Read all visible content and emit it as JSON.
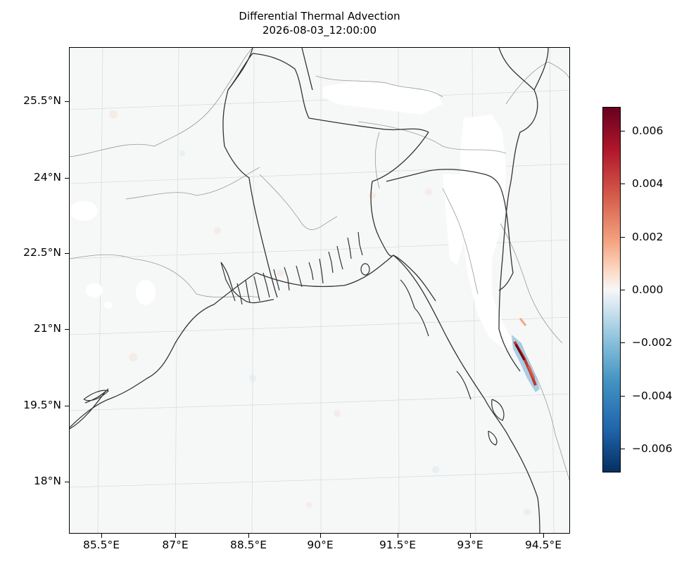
{
  "title": "Differential Thermal Advection",
  "subtitle": "2026-08-03_12:00:00",
  "map": {
    "region": "Bay of Bengal / Bangladesh",
    "lon_range": [
      84.9,
      95.0
    ],
    "lat_range": [
      16.9,
      26.6
    ],
    "lon_ticks": [
      "85.5°E",
      "87°E",
      "88.5°E",
      "90°E",
      "91.5°E",
      "93°E",
      "94.5°E"
    ],
    "lat_ticks": [
      "25.5°N",
      "24°N",
      "22.5°N",
      "21°N",
      "19.5°N",
      "18°N"
    ],
    "gridlines": true,
    "background_color": "#f6f7f7",
    "coastline_color": "#333333",
    "boundary_color": "#999999"
  },
  "colorbar": {
    "colormap": "RdBu_r",
    "range": [
      -0.0069,
      0.0069
    ],
    "ticks": [
      "0.006",
      "0.004",
      "0.002",
      "0.000",
      "−0.002",
      "−0.004",
      "−0.006"
    ],
    "tick_values": [
      0.006,
      0.004,
      0.002,
      0.0,
      -0.002,
      -0.004,
      -0.006
    ]
  }
}
